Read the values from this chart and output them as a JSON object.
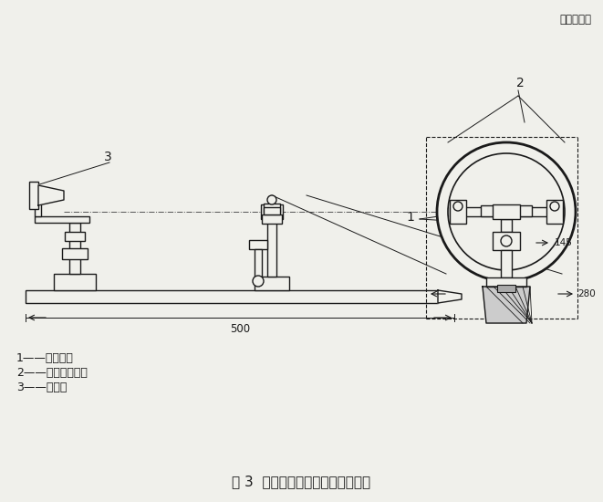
{
  "title": "图 3  环境光线干扰模拟装置结构图",
  "unit_label": "单位为毫米",
  "legend": [
    "1——白炽灯；",
    "2——环形荧光灯；",
    "3——试样。"
  ],
  "dim_500": "500",
  "dim_145": "145",
  "dim_280": "280",
  "label_1": "1",
  "label_2": "2",
  "label_3": "3",
  "bg_color": "#f0f0eb",
  "line_color": "#1a1a1a",
  "lw": 1.0
}
